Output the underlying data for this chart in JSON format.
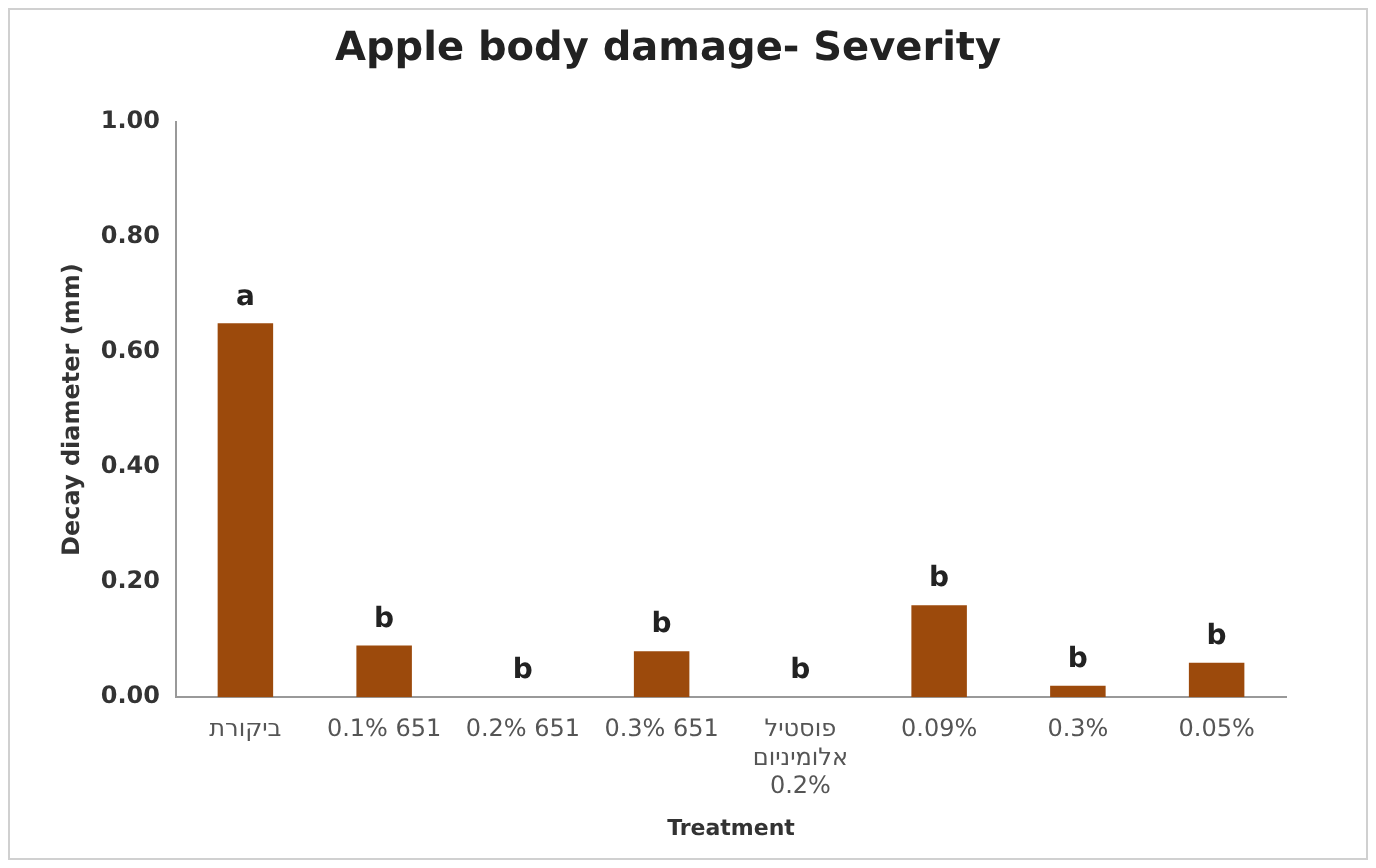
{
  "chart_data": {
    "type": "bar",
    "title": "Apple body damage- Severity",
    "xlabel": "Treatment",
    "ylabel": "Decay diameter (mm)",
    "categories": [
      "ביקורת",
      "0.1% 651",
      "0.2% 651",
      "0.3% 651",
      "פוסטיל אלומיניום 0.2%",
      "0.09%",
      "0.3%",
      "0.05%"
    ],
    "values": [
      0.65,
      0.09,
      0,
      0.08,
      0,
      0.16,
      0.02,
      0.06
    ],
    "value_labels": [
      "a",
      "b",
      "b",
      "b",
      "b",
      "b",
      "b",
      "b"
    ],
    "color": "#9c4a0c",
    "ylim": [
      0,
      1
    ],
    "yticks": [
      {
        "value": 0,
        "label": "0.00"
      },
      {
        "value": 0.2,
        "label": "0.20"
      },
      {
        "value": 0.4,
        "label": "0.40"
      },
      {
        "value": 0.6,
        "label": "0.60"
      },
      {
        "value": 0.8,
        "label": "0.80"
      },
      {
        "value": 1,
        "label": "1.00"
      }
    ],
    "grid": false,
    "legend": false
  }
}
